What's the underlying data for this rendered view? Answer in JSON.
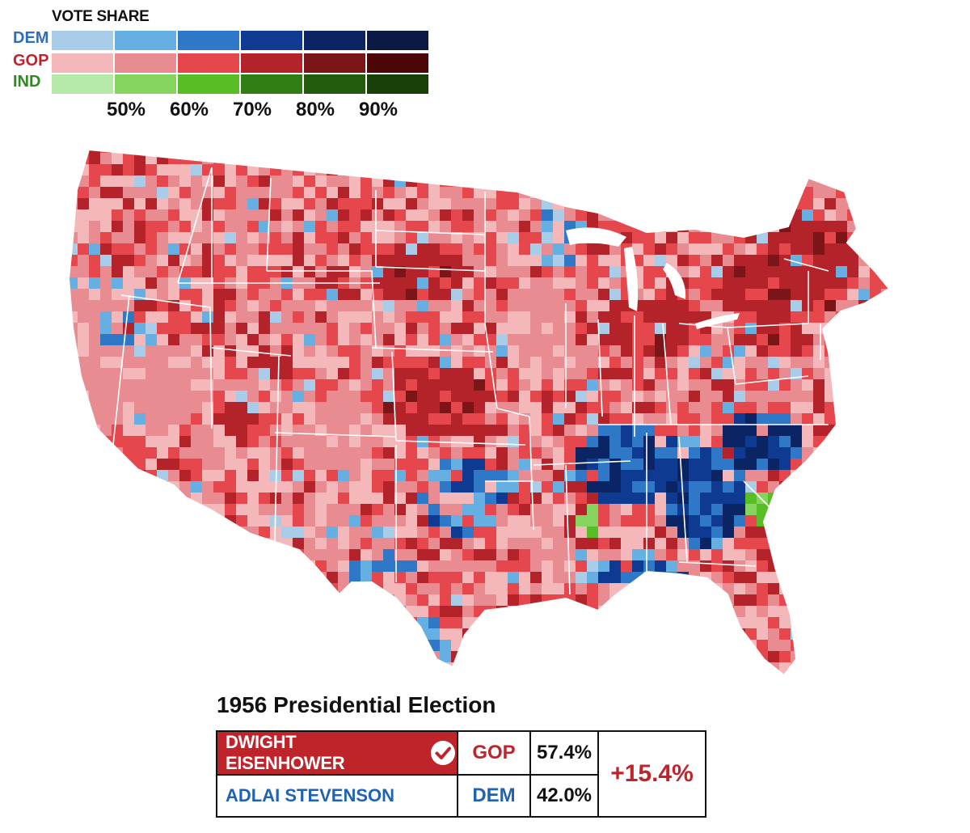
{
  "legend": {
    "title": "VOTE SHARE",
    "rows": [
      {
        "label": "DEM",
        "label_color": "#2e6fbd",
        "colors": [
          "#a9cce8",
          "#65afe3",
          "#2f78c7",
          "#0f3a91",
          "#0b2463",
          "#0a1a45"
        ]
      },
      {
        "label": "GOP",
        "label_color": "#c0242b",
        "colors": [
          "#f4b8bb",
          "#e88c91",
          "#e5474d",
          "#b5232a",
          "#7c1518",
          "#4d0607"
        ]
      },
      {
        "label": "IND",
        "label_color": "#2f8a22",
        "colors": [
          "#b4e9a8",
          "#85d45e",
          "#59bd25",
          "#2f7d13",
          "#235b0d",
          "#183f08"
        ]
      }
    ],
    "ticks": [
      "50%",
      "60%",
      "70%",
      "80%",
      "90%"
    ]
  },
  "map": {
    "shades": {
      "gop": [
        "#f4b8bb",
        "#e88c91",
        "#e5474d",
        "#b5232a",
        "#7c1518"
      ],
      "dem": [
        "#a9cce8",
        "#65afe3",
        "#2f78c7",
        "#0f3a91",
        "#0b2463"
      ],
      "ind": [
        "#85d45e",
        "#59bd25",
        "#2f7d13"
      ]
    }
  },
  "result": {
    "title": "1956 Presidential Election",
    "winner": {
      "name": "DWIGHT EISENHOWER",
      "party": "GOP",
      "share": "57.4%",
      "check_icon": "check-circle-icon"
    },
    "loser": {
      "name": "ADLAI STEVENSON",
      "party": "DEM",
      "share": "42.0%"
    },
    "margin": "+15.4%",
    "colors": {
      "gop": "#c0242b",
      "dem": "#1f63b3"
    }
  }
}
